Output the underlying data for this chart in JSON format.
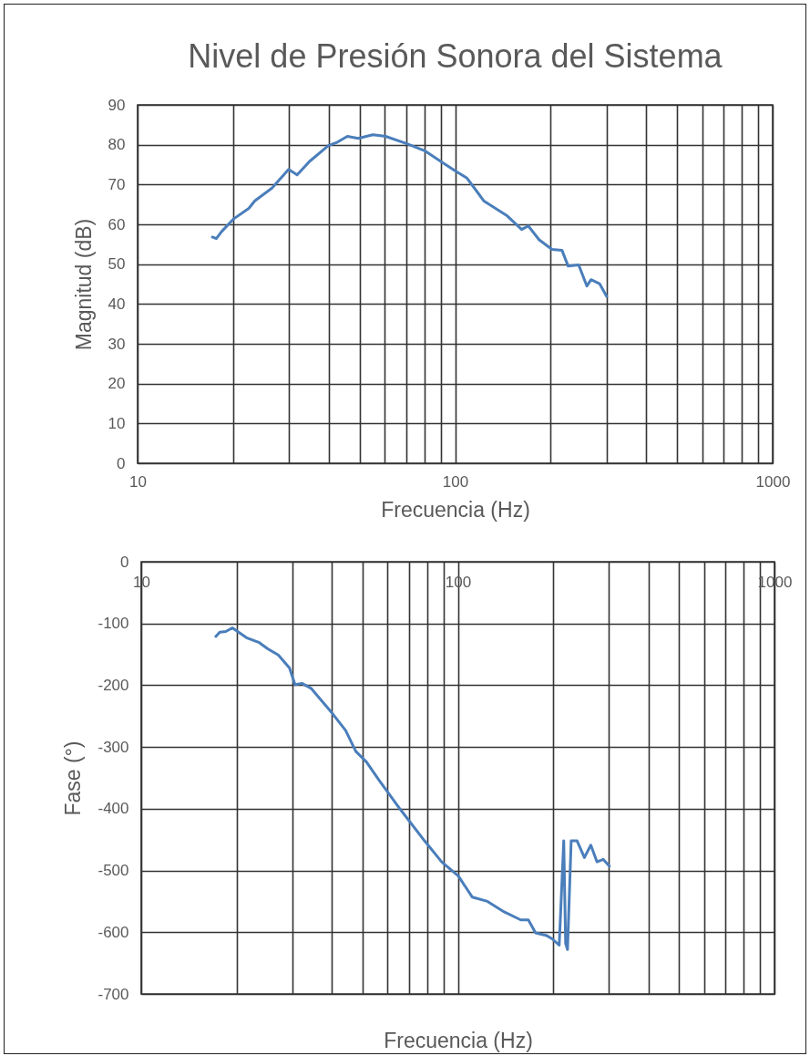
{
  "chart_data": [
    {
      "type": "line",
      "title": "Nivel de Presión Sonora del Sistema",
      "xlabel": "Frecuencia (Hz)",
      "ylabel": "Magnitud (dB)",
      "log": "x",
      "grid": true,
      "xlim": [
        10,
        1000
      ],
      "ylim": [
        0,
        90
      ],
      "xticks": [
        10,
        {
          "value": 20,
          "label": null
        },
        {
          "value": 30,
          "label": null
        },
        {
          "value": 40,
          "label": null
        },
        {
          "value": 50,
          "label": null
        },
        {
          "value": 60,
          "label": null
        },
        {
          "value": 70,
          "label": null
        },
        {
          "value": 80,
          "label": null
        },
        {
          "value": 90,
          "label": null
        },
        100,
        {
          "value": 200,
          "label": null
        },
        {
          "value": 300,
          "label": null
        },
        {
          "value": 400,
          "label": null
        },
        {
          "value": 500,
          "label": null
        },
        {
          "value": 600,
          "label": null
        },
        {
          "value": 700,
          "label": null
        },
        {
          "value": 800,
          "label": null
        },
        {
          "value": 900,
          "label": null
        },
        1000
      ],
      "yticks": [
        0,
        10,
        20,
        30,
        40,
        50,
        60,
        70,
        80,
        90
      ],
      "x": [
        17.2,
        17.7,
        18.4,
        20.1,
        22.4,
        23.4,
        26.5,
        29.9,
        31.8,
        34.8,
        39.9,
        42.5,
        45.8,
        49.5,
        55.1,
        60.4,
        70.2,
        80.6,
        91,
        99.7,
        109,
        116,
        123,
        146,
        162,
        170,
        184,
        202,
        217,
        227,
        245,
        260,
        268,
        285,
        300
      ],
      "series": [
        {
          "color": "#4a7ebb",
          "values": [
            56.8,
            56.4,
            58.2,
            61.4,
            64,
            65.9,
            69.1,
            73.8,
            72.4,
            75.8,
            79.8,
            80.6,
            82.1,
            81.6,
            82.5,
            82.1,
            80.3,
            78.4,
            75.6,
            73.5,
            71.6,
            68.7,
            65.9,
            62.1,
            58.7,
            59.6,
            56.1,
            53.7,
            53.5,
            49.5,
            49.8,
            44.5,
            46.1,
            45.1,
            41.9
          ]
        }
      ]
    },
    {
      "type": "line",
      "xlabel": "Frecuencia (Hz)",
      "ylabel": "Fase (°)",
      "log": "x",
      "grid": true,
      "xlim": [
        10,
        1000
      ],
      "ylim": [
        -700,
        0
      ],
      "xticks": [
        10,
        {
          "value": 20,
          "label": null
        },
        {
          "value": 30,
          "label": null
        },
        {
          "value": 40,
          "label": null
        },
        {
          "value": 50,
          "label": null
        },
        {
          "value": 60,
          "label": null
        },
        {
          "value": 70,
          "label": null
        },
        {
          "value": 80,
          "label": null
        },
        {
          "value": 90,
          "label": null
        },
        100,
        {
          "value": 200,
          "label": null
        },
        {
          "value": 300,
          "label": null
        },
        {
          "value": 400,
          "label": null
        },
        {
          "value": 500,
          "label": null
        },
        {
          "value": 600,
          "label": null
        },
        {
          "value": 700,
          "label": null
        },
        {
          "value": 800,
          "label": null
        },
        {
          "value": 900,
          "label": null
        },
        1000
      ],
      "yticks": [
        -700,
        -600,
        -500,
        -400,
        -300,
        -200,
        -100,
        0
      ],
      "x": [
        17.2,
        17.7,
        18.5,
        19.4,
        20.3,
        21.5,
        23.6,
        25.1,
        27.1,
        29.4,
        30.6,
        32.2,
        34.4,
        40.2,
        44.2,
        47.6,
        51.4,
        56.4,
        65.8,
        78.5,
        88.9,
        100.4,
        111,
        124,
        140,
        158,
        167,
        176,
        190,
        199,
        209,
        216,
        219,
        222,
        228,
        238,
        251,
        263,
        275,
        288,
        301
      ],
      "series": [
        {
          "color": "#4a7ebb",
          "values": [
            -121,
            -114,
            -113,
            -107,
            -114,
            -123,
            -131,
            -141,
            -151,
            -172,
            -199,
            -197,
            -205,
            -246,
            -273,
            -307,
            -324,
            -354,
            -401,
            -452,
            -486,
            -509,
            -543,
            -550,
            -567,
            -580,
            -580,
            -601,
            -605,
            -611,
            -621,
            -452,
            -618,
            -628,
            -452,
            -452,
            -479,
            -459,
            -486,
            -482,
            -493
          ]
        }
      ]
    }
  ]
}
